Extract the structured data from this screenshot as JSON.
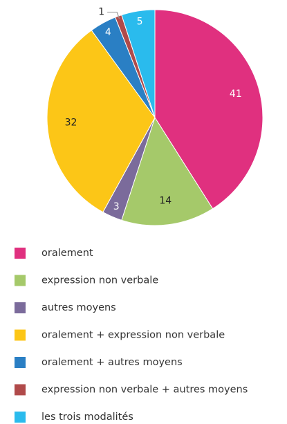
{
  "chart_data": {
    "type": "pie",
    "categories": [
      "oralement",
      "expression non verbale",
      "autres moyens",
      "oralement + expression non verbale",
      "oralement + autres moyens",
      "expression non verbale + autres moyens",
      "les trois modalités"
    ],
    "values": [
      41,
      14,
      3,
      32,
      4,
      1,
      5
    ],
    "colors": [
      "#e0307f",
      "#a5c96a",
      "#7b6b9b",
      "#fcc617",
      "#2a7fc4",
      "#b04a4a",
      "#2abbed"
    ]
  }
}
